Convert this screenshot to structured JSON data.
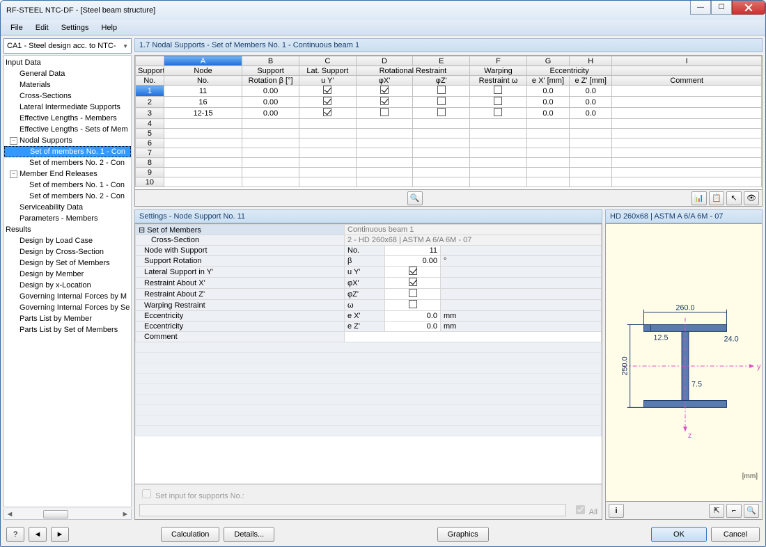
{
  "window": {
    "title": "RF-STEEL NTC-DF - [Steel beam structure]"
  },
  "menu": {
    "file": "File",
    "edit": "Edit",
    "settings": "Settings",
    "help": "Help"
  },
  "case_selector": "CA1 - Steel design acc. to NTC-",
  "tree": {
    "input_data": "Input Data",
    "general_data": "General Data",
    "materials": "Materials",
    "cross_sections": "Cross-Sections",
    "lis": "Lateral Intermediate Supports",
    "elm": "Effective Lengths - Members",
    "elsm": "Effective Lengths - Sets of Mem",
    "nodal_supports": "Nodal Supports",
    "som1": "Set of members No. 1 - Con",
    "som2": "Set of members No. 2 - Con",
    "mer": "Member End Releases",
    "mer1": "Set of members No. 1 - Con",
    "mer2": "Set of members No. 2 - Con",
    "serv": "Serviceability Data",
    "param": "Parameters - Members",
    "results": "Results",
    "dlc": "Design by Load Case",
    "dcs": "Design by Cross-Section",
    "dsm": "Design by Set of Members",
    "dm": "Design by Member",
    "dxl": "Design by x-Location",
    "gifm": "Governing Internal Forces by M",
    "gifs": "Governing Internal Forces by Se",
    "plm": "Parts List by Member",
    "plsm": "Parts List by Set of Members"
  },
  "main_title": "1.7 Nodal Supports - Set of Members No. 1 - Continuous beam 1",
  "grid": {
    "letters": [
      "A",
      "B",
      "C",
      "D",
      "E",
      "F",
      "G",
      "H",
      "I"
    ],
    "group_headers": {
      "support_no": "Support",
      "node": "Node",
      "support_rot": "Support",
      "lat_support": "Lat. Support",
      "rot_restraint": "Rotational Restraint",
      "warping": "Warping",
      "ecc": "Eccentricity",
      "comment_blank": ""
    },
    "sub_headers": {
      "no": "No.",
      "node_no": "No.",
      "rot_b": "Rotation β [°]",
      "uy": "u Y'",
      "phix": "φX'",
      "phiz": "φZ'",
      "restraint_w": "Restraint ω",
      "ex": "e X' [mm]",
      "ez": "e Z' [mm]",
      "comment": "Comment"
    },
    "rows": [
      {
        "no": "1",
        "node": "11",
        "rot": "0.00",
        "uy": true,
        "phix": true,
        "phiz": false,
        "w": false,
        "ex": "0.0",
        "ez": "0.0"
      },
      {
        "no": "2",
        "node": "16",
        "rot": "0.00",
        "uy": true,
        "phix": true,
        "phiz": false,
        "w": false,
        "ex": "0.0",
        "ez": "0.0"
      },
      {
        "no": "3",
        "node": "12-15",
        "rot": "0.00",
        "uy": true,
        "phix": false,
        "phiz": false,
        "w": false,
        "ex": "0.0",
        "ez": "0.0"
      }
    ],
    "blank_rows": [
      "4",
      "5",
      "6",
      "7",
      "8",
      "9",
      "10"
    ]
  },
  "settings": {
    "title": "Settings - Node Support No. 11",
    "set_of_members": "Set of Members",
    "set_of_members_v": "Continuous beam 1",
    "cross_section": "Cross-Section",
    "cross_section_v": "2 - HD 260x68 | ASTM A 6/A 6M - 07",
    "node_with_support": "Node with Support",
    "node_with_support_sym": "No.",
    "node_with_support_v": "11",
    "support_rotation": "Support Rotation",
    "support_rotation_sym": "β",
    "support_rotation_v": "0.00",
    "deg": "°",
    "lat_y": "Lateral Support in Y'",
    "lat_y_sym": "u Y'",
    "lat_y_v": true,
    "rx": "Restraint About X'",
    "rx_sym": "φX'",
    "rx_v": true,
    "rz": "Restraint About Z'",
    "rz_sym": "φZ'",
    "rz_v": false,
    "warp": "Warping Restraint",
    "warp_sym": "ω",
    "warp_v": false,
    "ex": "Eccentricity",
    "ex_sym": "e X'",
    "ex_v": "0.0",
    "mm": "mm",
    "ez": "Eccentricity",
    "ez_sym": "e Z'",
    "ez_v": "0.0",
    "comment": "Comment",
    "foot_check": "Set input for supports No.:",
    "foot_all": "All"
  },
  "preview": {
    "title": "HD 260x68 | ASTM A 6/A 6M - 07",
    "width": "260.0",
    "height": "250.0",
    "tf": "12.5",
    "tw": "7.5",
    "bf_dim": "24.0",
    "unit": "[mm]",
    "colors": {
      "steel": "#5a7bb0",
      "steel_border": "#1b3a6b",
      "bg": "#fffde8",
      "dim": "#1b3a6b",
      "axis": "#e04fc4"
    }
  },
  "bottom": {
    "calculation": "Calculation",
    "details": "Details...",
    "graphics": "Graphics",
    "ok": "OK",
    "cancel": "Cancel"
  }
}
